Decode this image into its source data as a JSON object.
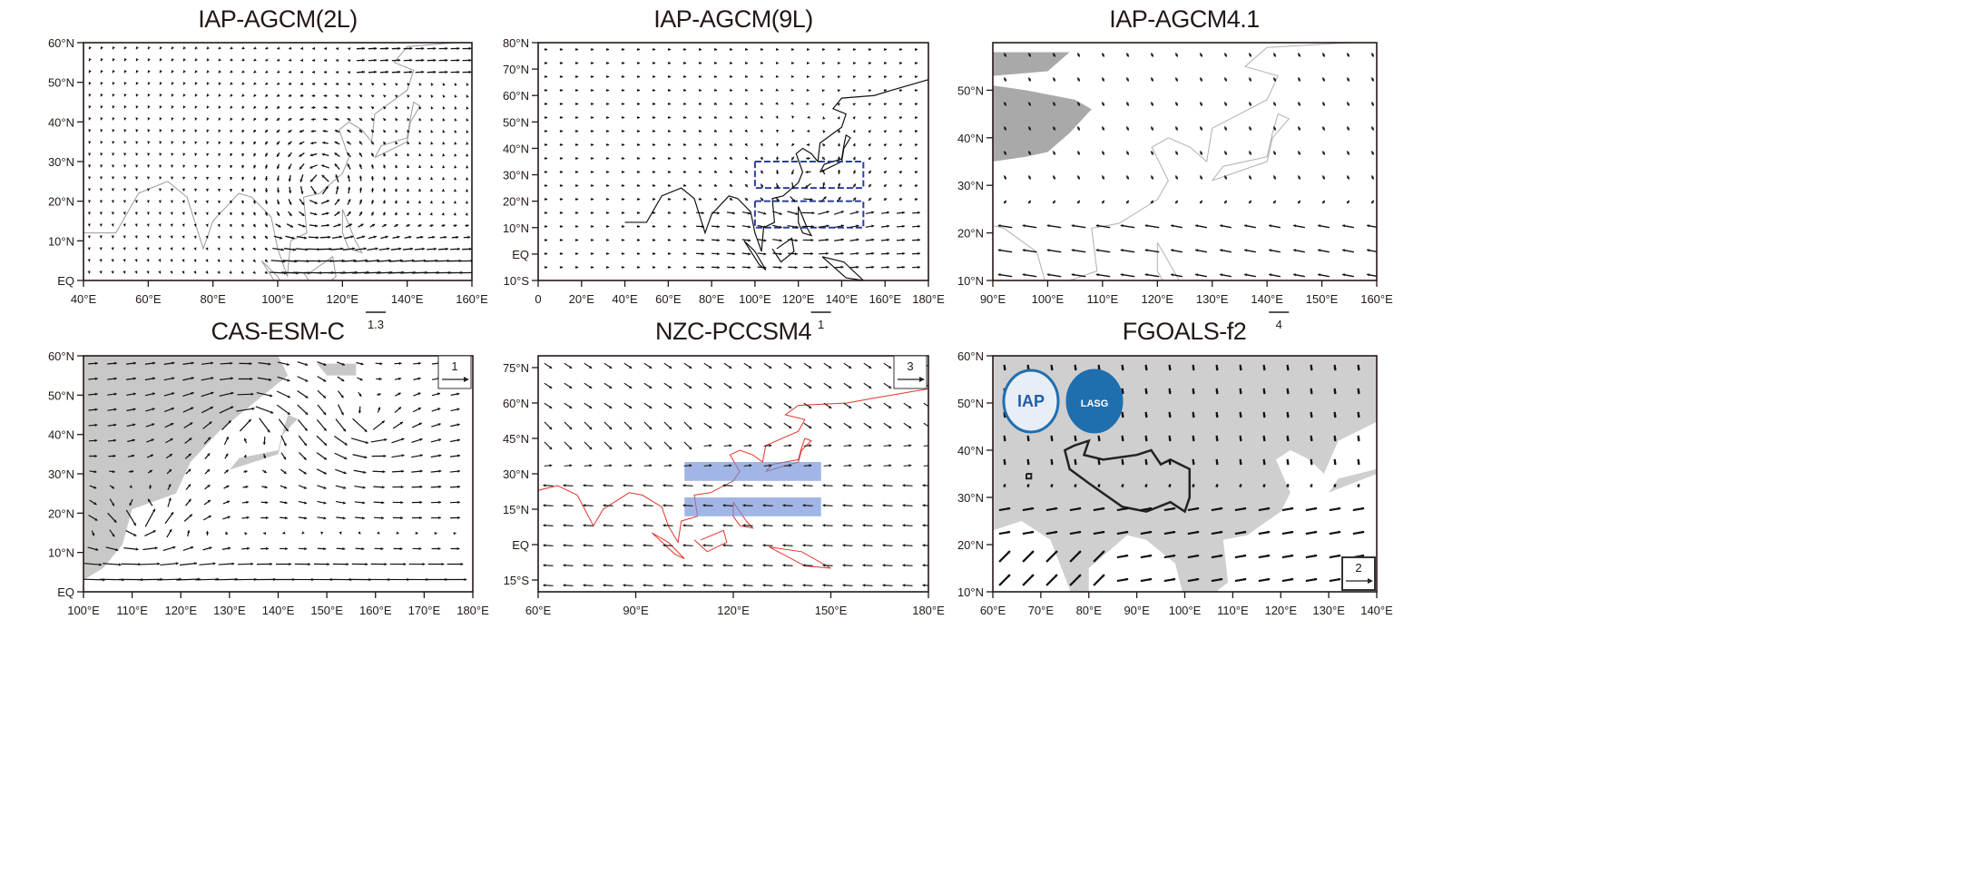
{
  "panels": [
    {
      "title": "IAP-AGCM(2L)",
      "lon_range": [
        40,
        160
      ],
      "lat_range": [
        0,
        60
      ],
      "lon_ticks": [
        {
          "v": 40,
          "t": "40°E"
        },
        {
          "v": 60,
          "t": "60°E"
        },
        {
          "v": 80,
          "t": "80°E"
        },
        {
          "v": 100,
          "t": "100°E"
        },
        {
          "v": 120,
          "t": "120°E"
        },
        {
          "v": 140,
          "t": "140°E"
        },
        {
          "v": 160,
          "t": "160°E"
        }
      ],
      "lat_ticks": [
        {
          "v": 60,
          "t": "60°N"
        },
        {
          "v": 50,
          "t": "50°N"
        },
        {
          "v": 40,
          "t": "40°N"
        },
        {
          "v": 30,
          "t": "30°N"
        },
        {
          "v": 20,
          "t": "20°N"
        },
        {
          "v": 10,
          "t": "10°N"
        },
        {
          "v": 0,
          "t": "EQ"
        }
      ],
      "reference_vector": {
        "label": "1.3",
        "style": "below-axis"
      },
      "coastline_color": "#9a9a9a",
      "land_fill": "none"
    },
    {
      "title": "IAP-AGCM(9L)",
      "lon_range": [
        0,
        180
      ],
      "lat_range": [
        -10,
        80
      ],
      "lon_ticks": [
        {
          "v": 0,
          "t": "0"
        },
        {
          "v": 20,
          "t": "20°E"
        },
        {
          "v": 40,
          "t": "40°E"
        },
        {
          "v": 60,
          "t": "60°E"
        },
        {
          "v": 80,
          "t": "80°E"
        },
        {
          "v": 100,
          "t": "100°E"
        },
        {
          "v": 120,
          "t": "120°E"
        },
        {
          "v": 140,
          "t": "140°E"
        },
        {
          "v": 160,
          "t": "160°E"
        },
        {
          "v": 180,
          "t": "180°E"
        }
      ],
      "lat_ticks": [
        {
          "v": 80,
          "t": "80°N"
        },
        {
          "v": 70,
          "t": "70°N"
        },
        {
          "v": 60,
          "t": "60°N"
        },
        {
          "v": 50,
          "t": "50°N"
        },
        {
          "v": 40,
          "t": "40°N"
        },
        {
          "v": 30,
          "t": "30°N"
        },
        {
          "v": 20,
          "t": "20°N"
        },
        {
          "v": 10,
          "t": "10°N"
        },
        {
          "v": 0,
          "t": "EQ"
        },
        {
          "v": -10,
          "t": "10°S"
        }
      ],
      "reference_vector": {
        "label": "1",
        "style": "below-axis"
      },
      "coastline_color": "#111111",
      "land_fill": "none",
      "regions": [
        {
          "lon": [
            100,
            150
          ],
          "lat": [
            25,
            35
          ],
          "style": "dashed",
          "color": "#2a3f9e"
        },
        {
          "lon": [
            100,
            150
          ],
          "lat": [
            10,
            20
          ],
          "style": "dashed",
          "color": "#2a3f9e"
        }
      ]
    },
    {
      "title": "IAP-AGCM4.1",
      "lon_range": [
        90,
        160
      ],
      "lat_range": [
        10,
        60
      ],
      "lon_ticks": [
        {
          "v": 90,
          "t": "90°E"
        },
        {
          "v": 100,
          "t": "100°E"
        },
        {
          "v": 110,
          "t": "110°E"
        },
        {
          "v": 120,
          "t": "120°E"
        },
        {
          "v": 130,
          "t": "130°E"
        },
        {
          "v": 140,
          "t": "140°E"
        },
        {
          "v": 150,
          "t": "150°E"
        },
        {
          "v": 160,
          "t": "160°E"
        }
      ],
      "lat_ticks": [
        {
          "v": 50,
          "t": "50°N"
        },
        {
          "v": 40,
          "t": "40°N"
        },
        {
          "v": 30,
          "t": "30°N"
        },
        {
          "v": 20,
          "t": "20°N"
        },
        {
          "v": 10,
          "t": "10°N"
        }
      ],
      "reference_vector": {
        "label": "4",
        "style": "below-axis"
      },
      "coastline_color": "#b0b0b0",
      "land_fill": "#a9a9a9"
    },
    {
      "title": "CAS-ESM-C",
      "lon_range": [
        100,
        180
      ],
      "lat_range": [
        0,
        60
      ],
      "lon_ticks": [
        {
          "v": 100,
          "t": "100°E"
        },
        {
          "v": 110,
          "t": "110°E"
        },
        {
          "v": 120,
          "t": "120°E"
        },
        {
          "v": 130,
          "t": "130°E"
        },
        {
          "v": 140,
          "t": "140°E"
        },
        {
          "v": 150,
          "t": "150°E"
        },
        {
          "v": 160,
          "t": "160°E"
        },
        {
          "v": 170,
          "t": "170°E"
        },
        {
          "v": 180,
          "t": "180°E"
        }
      ],
      "lat_ticks": [
        {
          "v": 60,
          "t": "60°N"
        },
        {
          "v": 50,
          "t": "50°N"
        },
        {
          "v": 40,
          "t": "40°N"
        },
        {
          "v": 30,
          "t": "30°N"
        },
        {
          "v": 20,
          "t": "20°N"
        },
        {
          "v": 10,
          "t": "10°N"
        },
        {
          "v": 0,
          "t": "EQ"
        }
      ],
      "reference_vector": {
        "label": "1",
        "style": "box-top-right"
      },
      "coastline_color": "none",
      "land_fill": "#c8c8c8"
    },
    {
      "title": "NZC-PCCSM4",
      "lon_range": [
        60,
        180
      ],
      "lat_range": [
        -20,
        80
      ],
      "lon_ticks": [
        {
          "v": 60,
          "t": "60°E"
        },
        {
          "v": 90,
          "t": "90°E"
        },
        {
          "v": 120,
          "t": "120°E"
        },
        {
          "v": 150,
          "t": "150°E"
        },
        {
          "v": 180,
          "t": "180°E"
        }
      ],
      "lat_ticks": [
        {
          "v": 75,
          "t": "75°N"
        },
        {
          "v": 60,
          "t": "60°N"
        },
        {
          "v": 45,
          "t": "45°N"
        },
        {
          "v": 30,
          "t": "30°N"
        },
        {
          "v": 15,
          "t": "15°N"
        },
        {
          "v": 0,
          "t": "EQ"
        },
        {
          "v": -15,
          "t": "15°S"
        }
      ],
      "reference_vector": {
        "label": "3",
        "style": "box-top-right"
      },
      "coastline_color": "#e0342c",
      "land_fill": "none",
      "regions": [
        {
          "lon": [
            105,
            147
          ],
          "lat": [
            27,
            35
          ],
          "style": "filled",
          "color": "#6f8fd8"
        },
        {
          "lon": [
            105,
            147
          ],
          "lat": [
            12,
            20
          ],
          "style": "filled",
          "color": "#6f8fd8"
        }
      ]
    },
    {
      "title": "FGOALS-f2",
      "lon_range": [
        60,
        140
      ],
      "lat_range": [
        10,
        60
      ],
      "lon_ticks": [
        {
          "v": 60,
          "t": "60°E"
        },
        {
          "v": 70,
          "t": "70°E"
        },
        {
          "v": 80,
          "t": "80°E"
        },
        {
          "v": 90,
          "t": "90°E"
        },
        {
          "v": 100,
          "t": "100°E"
        },
        {
          "v": 110,
          "t": "110°E"
        },
        {
          "v": 120,
          "t": "120°E"
        },
        {
          "v": 130,
          "t": "130°E"
        },
        {
          "v": 140,
          "t": "140°E"
        }
      ],
      "lat_ticks": [
        {
          "v": 60,
          "t": "60°N"
        },
        {
          "v": 50,
          "t": "50°N"
        },
        {
          "v": 40,
          "t": "40°N"
        },
        {
          "v": 30,
          "t": "30°N"
        },
        {
          "v": 20,
          "t": "20°N"
        },
        {
          "v": 10,
          "t": "10°N"
        }
      ],
      "reference_vector": {
        "label": "2",
        "style": "box-bottom-right"
      },
      "coastline_color": "none",
      "land_fill": "#cfcfcf",
      "logos": [
        "IAP",
        "LASG"
      ]
    }
  ]
}
